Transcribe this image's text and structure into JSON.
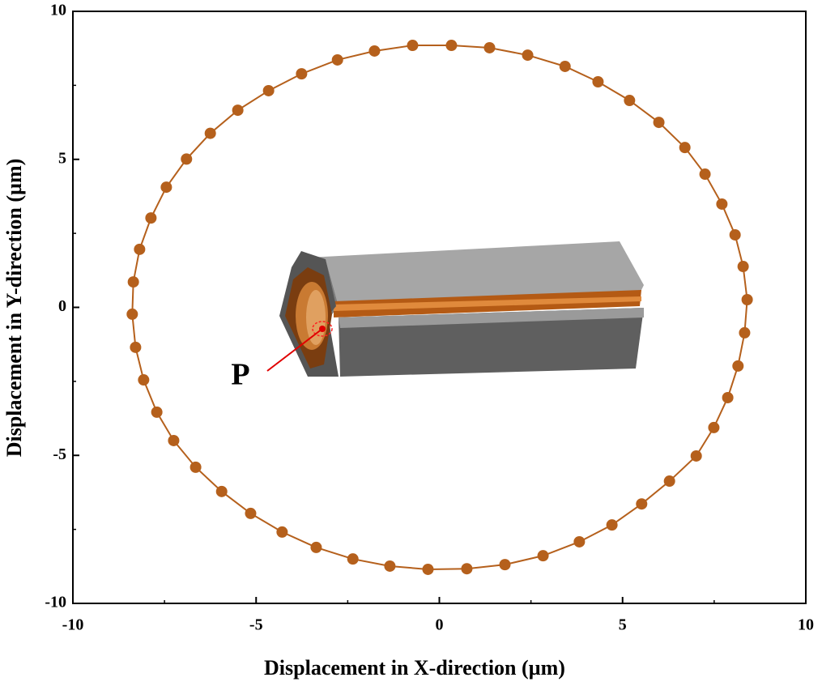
{
  "chart_data": {
    "type": "scatter",
    "x_label": "Displacement in X-direction (µm)",
    "y_label": "Displacement in Y-direction (µm)",
    "annotation": "P",
    "xlim": [
      -10,
      10
    ],
    "ylim": [
      -10,
      10
    ],
    "xticks": [
      -10,
      -5,
      0,
      5,
      10
    ],
    "yticks": [
      -10,
      -5,
      0,
      5,
      10
    ],
    "connect_points": true,
    "closed": true,
    "series": [
      {
        "color": "#b5601c",
        "x": [
          0.33,
          1.37,
          2.41,
          3.43,
          4.33,
          5.19,
          5.99,
          6.7,
          7.25,
          7.71,
          8.07,
          8.29,
          8.4,
          8.33,
          8.15,
          7.87,
          7.49,
          7.01,
          6.28,
          5.52,
          4.71,
          3.82,
          2.83,
          1.79,
          0.75,
          -0.31,
          -1.35,
          -2.36,
          -3.36,
          -4.29,
          -5.15,
          -5.94,
          -6.65,
          -7.25,
          -7.71,
          -8.07,
          -8.29,
          -8.38,
          -8.35,
          -8.18,
          -7.87,
          -7.45,
          -6.9,
          -6.25,
          -5.5,
          -4.66,
          -3.76,
          -2.78,
          -1.77,
          -0.73
        ],
        "y": [
          8.85,
          8.77,
          8.52,
          8.14,
          7.62,
          6.99,
          6.25,
          5.4,
          4.5,
          3.49,
          2.45,
          1.38,
          0.26,
          -0.86,
          -1.98,
          -3.05,
          -4.06,
          -5.02,
          -5.87,
          -6.64,
          -7.35,
          -7.92,
          -8.39,
          -8.69,
          -8.83,
          -8.85,
          -8.74,
          -8.5,
          -8.11,
          -7.59,
          -6.96,
          -6.22,
          -5.4,
          -4.5,
          -3.54,
          -2.45,
          -1.35,
          -0.23,
          0.86,
          1.96,
          3.02,
          4.06,
          5.01,
          5.88,
          6.66,
          7.32,
          7.89,
          8.36,
          8.66,
          8.85
        ]
      }
    ]
  }
}
